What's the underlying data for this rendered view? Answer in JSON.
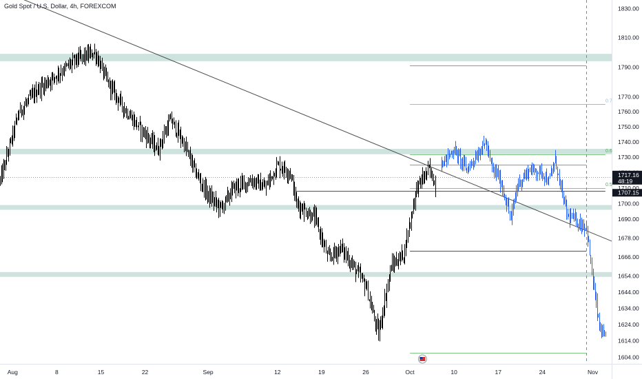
{
  "header": {
    "title": "Gold Spot / U.S. Dollar, 4h, FOREXCOM"
  },
  "colors": {
    "candle": "#000000",
    "projection": "#2962ff",
    "zone": "#cfe3de",
    "trendline": "#505050",
    "fib_red": "#e57373",
    "fib_blue": "#90bfe0",
    "fib_green": "#81c784",
    "price_label_bg": "#131722",
    "dashed_line": "#4caf50",
    "axis_text": "#131722"
  },
  "chart_data": {
    "type": "candlestick",
    "title": "Gold Spot / U.S. Dollar, 4h, FOREXCOM",
    "ylim": [
      1600,
      1836
    ],
    "y_scale": "log",
    "xlim": [
      "2022-07-30",
      "2022-11-04"
    ],
    "x_ticks": [
      {
        "date": "2022-08-01",
        "label": "Aug"
      },
      {
        "date": "2022-08-08",
        "label": "8"
      },
      {
        "date": "2022-08-15",
        "label": "15"
      },
      {
        "date": "2022-08-22",
        "label": "22"
      },
      {
        "date": "2022-09-01",
        "label": "Sep"
      },
      {
        "date": "2022-09-12",
        "label": "12"
      },
      {
        "date": "2022-09-19",
        "label": "19"
      },
      {
        "date": "2022-09-26",
        "label": "26"
      },
      {
        "date": "2022-10-03",
        "label": "Oct"
      },
      {
        "date": "2022-10-10",
        "label": "10"
      },
      {
        "date": "2022-10-17",
        "label": "17"
      },
      {
        "date": "2022-10-24",
        "label": "24"
      },
      {
        "date": "2022-11-01",
        "label": "Nov"
      }
    ],
    "y_ticks": [
      1604.0,
      1614.0,
      1624.0,
      1634.0,
      1644.0,
      1654.0,
      1666.0,
      1678.0,
      1690.0,
      1700.0,
      1710.0,
      1720.0,
      1730.0,
      1740.0,
      1750.0,
      1760.0,
      1770.0,
      1790.0,
      1810.0,
      1830.0
    ],
    "y_tick_labels": [
      "1604.00",
      "1614.00",
      "1624.00",
      "1634.00",
      "1644.00",
      "1654.00",
      "1666.00",
      "1678.00",
      "1690.00",
      "1700.00",
      "1710.00",
      "1720.00",
      "1730.00",
      "1740.00",
      "1750.00",
      "1760.00",
      "1770.00",
      "1790.00",
      "1810.00",
      "1830.00"
    ],
    "current_price": {
      "price": "1717.16",
      "countdown": "48:19"
    },
    "secondary_price": "1707.15",
    "zones": [
      {
        "low": 1794,
        "high": 1799
      },
      {
        "low": 1732,
        "high": 1735.5
      },
      {
        "low": 1696,
        "high": 1699
      },
      {
        "low": 1653.5,
        "high": 1656.5
      }
    ],
    "fib_labels": {
      "upper": "0.7",
      "middle": "0.6",
      "lower": "0.5"
    },
    "trendline": {
      "start": {
        "date": "2022-07-30",
        "price": 1843
      },
      "end": {
        "date": "2022-11-04",
        "price": 1676
      }
    },
    "horizontal_lines": [
      {
        "price": 1791,
        "from": "2022-10-03",
        "to": "2022-10-31",
        "color": "fib_red"
      },
      {
        "price": 1765,
        "from": "2022-10-03",
        "to": "2022-11-03",
        "color": "fib_blue"
      },
      {
        "price": 1732,
        "from": "2022-10-03",
        "to": "2022-11-03",
        "color": "fib_green"
      },
      {
        "price": 1725,
        "from": "2022-10-03",
        "to": "2022-10-31",
        "color": "fib_red"
      },
      {
        "price": 1710,
        "from": "2022-10-03",
        "to": "2022-11-03",
        "color": "fib_green"
      },
      {
        "price": 1708,
        "from": "2022-09-15",
        "to": "2022-11-03",
        "color": "trendline"
      },
      {
        "price": 1670,
        "from": "2022-10-03",
        "to": "2022-10-31",
        "color": "trendline"
      },
      {
        "price": 1606.5,
        "from": "2022-10-03",
        "to": "2022-10-31",
        "color": "fib_green"
      }
    ],
    "dashed_vertical": "2022-10-31",
    "flag_marker": "2022-10-05",
    "candle_anchors": [
      [
        "2022-07-30",
        1715
      ],
      [
        "2022-08-02",
        1760
      ],
      [
        "2022-08-05",
        1775
      ],
      [
        "2022-08-08",
        1785
      ],
      [
        "2022-08-11",
        1795
      ],
      [
        "2022-08-14",
        1800
      ],
      [
        "2022-08-16",
        1780
      ],
      [
        "2022-08-19",
        1760
      ],
      [
        "2022-08-22",
        1745
      ],
      [
        "2022-08-24",
        1735
      ],
      [
        "2022-08-26",
        1755
      ],
      [
        "2022-08-28",
        1740
      ],
      [
        "2022-08-30",
        1720
      ],
      [
        "2022-09-01",
        1705
      ],
      [
        "2022-09-03",
        1697
      ],
      [
        "2022-09-05",
        1710
      ],
      [
        "2022-09-08",
        1715
      ],
      [
        "2022-09-10",
        1710
      ],
      [
        "2022-09-12",
        1725
      ],
      [
        "2022-09-14",
        1720
      ],
      [
        "2022-09-15",
        1700
      ],
      [
        "2022-09-18",
        1690
      ],
      [
        "2022-09-20",
        1665
      ],
      [
        "2022-09-22",
        1672
      ],
      [
        "2022-09-24",
        1660
      ],
      [
        "2022-09-26",
        1648
      ],
      [
        "2022-09-27",
        1632
      ],
      [
        "2022-09-28",
        1618
      ],
      [
        "2022-09-30",
        1660
      ],
      [
        "2022-10-02",
        1668
      ],
      [
        "2022-10-04",
        1710
      ],
      [
        "2022-10-06",
        1722
      ],
      [
        "2022-10-07",
        1712
      ]
    ],
    "projection_anchors": [
      [
        "2022-10-08",
        1726
      ],
      [
        "2022-10-10",
        1735
      ],
      [
        "2022-10-12",
        1722
      ],
      [
        "2022-10-14",
        1734
      ],
      [
        "2022-10-15",
        1740
      ],
      [
        "2022-10-16",
        1722
      ],
      [
        "2022-10-17",
        1718
      ],
      [
        "2022-10-18",
        1705
      ],
      [
        "2022-10-19",
        1690
      ],
      [
        "2022-10-20",
        1712
      ],
      [
        "2022-10-22",
        1722
      ],
      [
        "2022-10-24",
        1720
      ],
      [
        "2022-10-25",
        1714
      ],
      [
        "2022-10-26",
        1728
      ],
      [
        "2022-10-27",
        1708
      ],
      [
        "2022-10-28",
        1692
      ],
      [
        "2022-10-29",
        1690
      ],
      [
        "2022-10-30",
        1687
      ],
      [
        "2022-10-31",
        1685
      ],
      [
        "2022-11-01",
        1650
      ],
      [
        "2022-11-02",
        1622
      ],
      [
        "2022-11-03",
        1614
      ]
    ]
  }
}
